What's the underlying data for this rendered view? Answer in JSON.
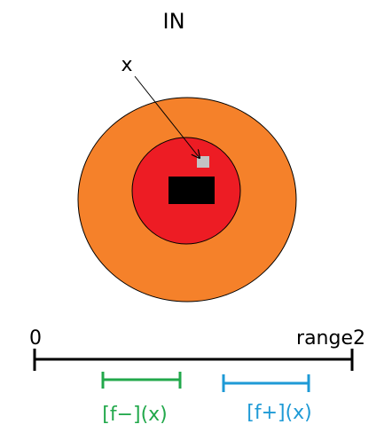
{
  "title": "IN",
  "point_label": "x",
  "number_line": {
    "start_label": "0",
    "end_label": "range2"
  },
  "intervals": [
    {
      "label": "[f−](x)",
      "color": "#22a84b"
    },
    {
      "label": "[f+](x)",
      "color": "#1e9ad6"
    }
  ],
  "colors": {
    "outer_region": "#f5812a",
    "inner_region": "#ed1c24",
    "core_block": "#000000",
    "point_marker": "#c3c3c3",
    "line": "#000000"
  }
}
